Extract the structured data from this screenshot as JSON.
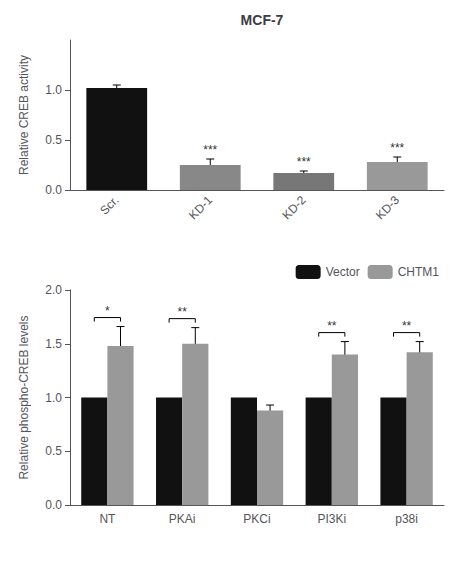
{
  "chart_data": [
    {
      "type": "bar",
      "title": "MCF-7",
      "categories": [
        "Scr.",
        "KD-1",
        "KD-2",
        "KD-3"
      ],
      "values": [
        1.02,
        0.25,
        0.17,
        0.28
      ],
      "errors": [
        0.03,
        0.06,
        0.02,
        0.05
      ],
      "colors": [
        "#111111",
        "#888888",
        "#777777",
        "#999999"
      ],
      "ylabel": "Relative CREB activity",
      "ylim": [
        0,
        1.5
      ],
      "yticks": [
        {
          "value": 0,
          "label": "0.0"
        },
        0.5,
        {
          "value": 1,
          "label": "1.0"
        }
      ],
      "annotations": [
        {
          "category": "KD-1",
          "text": "***"
        },
        {
          "category": "KD-2",
          "text": "***"
        },
        {
          "category": "KD-3",
          "text": "***"
        }
      ],
      "grid": false
    },
    {
      "type": "bar",
      "categories": [
        "NT",
        "PKAi",
        "PKCi",
        "PI3Ki",
        "p38i"
      ],
      "series": [
        {
          "name": "Vector",
          "color": "#111111",
          "values": [
            1.0,
            1.0,
            1.0,
            1.0,
            1.0
          ]
        },
        {
          "name": "CHTM1",
          "color": "#999999",
          "values": [
            1.48,
            1.5,
            0.88,
            1.4,
            1.42
          ],
          "errors": [
            0.18,
            0.15,
            0.05,
            0.12,
            0.1
          ]
        }
      ],
      "ylabel": "Relative phospho-CREB levels",
      "ylim": [
        0,
        2.0
      ],
      "yticks": [
        {
          "value": 0,
          "label": "0.0"
        },
        0.5,
        {
          "value": 1,
          "label": "1.0"
        },
        1.5,
        {
          "value": 2,
          "label": "2.0"
        }
      ],
      "legend": "upper right",
      "annotations": [
        {
          "category": "NT",
          "text": "*"
        },
        {
          "category": "PKAi",
          "text": "**"
        },
        {
          "category": "PI3Ki",
          "text": "**"
        },
        {
          "category": "p38i",
          "text": "**"
        }
      ],
      "grid": false
    }
  ]
}
